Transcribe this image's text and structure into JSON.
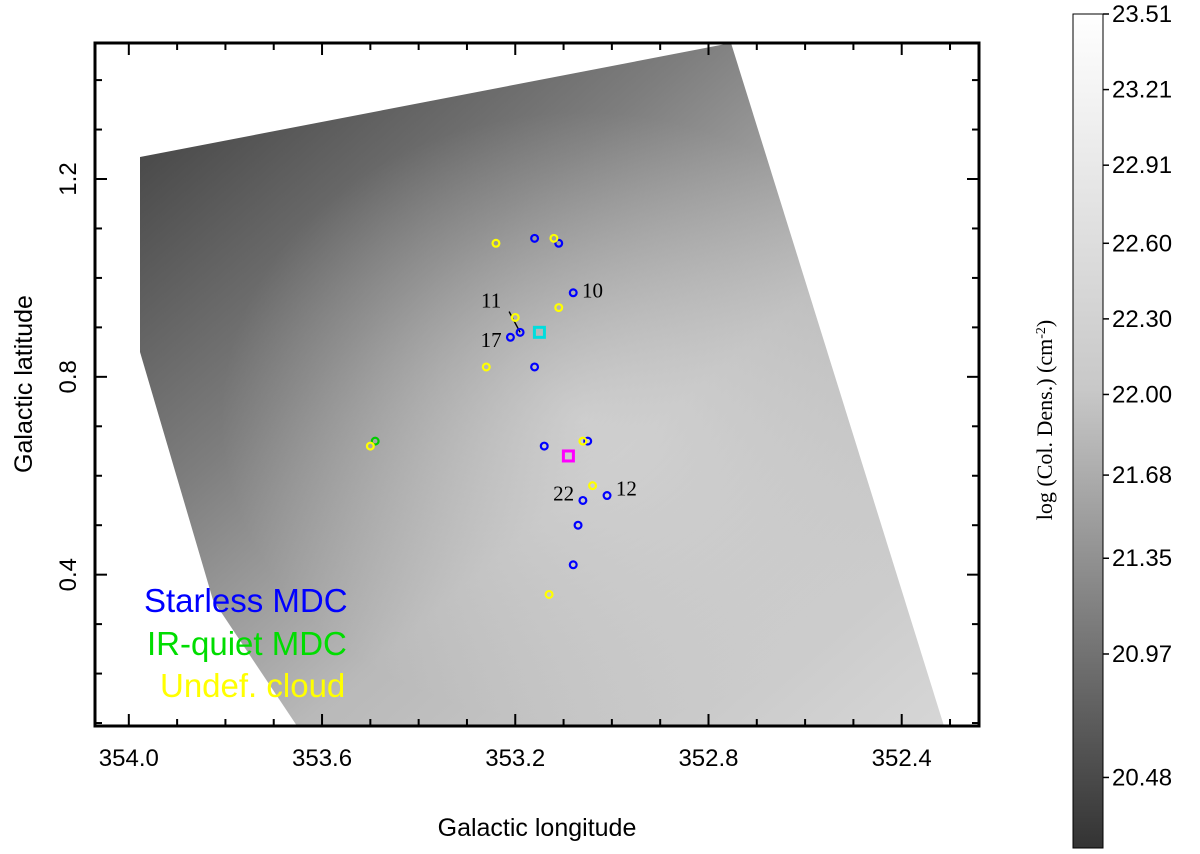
{
  "chart_data": {
    "type": "scatter",
    "title": "",
    "xlabel": "Galactic longitude",
    "ylabel": "Galactic latitude",
    "xlim": [
      354.07,
      352.24
    ],
    "ylim": [
      0.094,
      1.475
    ],
    "x_reversed": true,
    "xticks": [
      "354.0",
      "353.6",
      "353.2",
      "352.8",
      "352.4"
    ],
    "yticks": [
      "0.4",
      "0.8",
      "1.2"
    ],
    "background": "grayscale column-density map (log scale)",
    "grid": false,
    "legend_position": "bottom-left",
    "colorbar": {
      "label": "log (Col. Dens.) (cm⁻²)",
      "label_parts": {
        "main": "log (Col. Dens.) (cm",
        "sup": "-2",
        "end": ")"
      },
      "ticks": [
        "23.51",
        "23.21",
        "22.91",
        "22.60",
        "22.30",
        "22.00",
        "21.68",
        "21.35",
        "20.97",
        "20.48"
      ],
      "range": [
        20.2,
        23.51
      ],
      "colors": {
        "low": "#333333",
        "high": "#ffffff"
      }
    },
    "series": [
      {
        "name": "Starless MDC",
        "color": "#0000ff",
        "marker": "circle",
        "points": [
          {
            "x": 353.16,
            "y": 1.08
          },
          {
            "x": 353.11,
            "y": 1.07
          },
          {
            "x": 353.08,
            "y": 0.97
          },
          {
            "x": 353.19,
            "y": 0.89
          },
          {
            "x": 353.21,
            "y": 0.88
          },
          {
            "x": 353.16,
            "y": 0.82
          },
          {
            "x": 353.14,
            "y": 0.66
          },
          {
            "x": 353.05,
            "y": 0.67
          },
          {
            "x": 353.01,
            "y": 0.56
          },
          {
            "x": 353.06,
            "y": 0.55
          },
          {
            "x": 353.07,
            "y": 0.5
          },
          {
            "x": 353.08,
            "y": 0.42
          }
        ]
      },
      {
        "name": "IR-quiet MDC",
        "color": "#00cc00",
        "marker": "circle",
        "points": [
          {
            "x": 353.49,
            "y": 0.67
          }
        ]
      },
      {
        "name": "Undef. cloud",
        "color": "#ffff00",
        "marker": "circle",
        "points": [
          {
            "x": 353.24,
            "y": 1.07
          },
          {
            "x": 353.12,
            "y": 1.08
          },
          {
            "x": 353.11,
            "y": 0.94
          },
          {
            "x": 353.2,
            "y": 0.92
          },
          {
            "x": 353.26,
            "y": 0.82
          },
          {
            "x": 353.06,
            "y": 0.67
          },
          {
            "x": 353.04,
            "y": 0.58
          },
          {
            "x": 353.13,
            "y": 0.36
          },
          {
            "x": 353.5,
            "y": 0.66
          }
        ]
      },
      {
        "name": "",
        "color": "#00dddd",
        "marker": "square",
        "points": [
          {
            "x": 353.15,
            "y": 0.89
          }
        ]
      },
      {
        "name": "",
        "color": "#ff00ff",
        "marker": "square",
        "points": [
          {
            "x": 353.09,
            "y": 0.64
          }
        ]
      }
    ],
    "annotations": [
      {
        "text": "10",
        "x": 353.04,
        "y": 0.96
      },
      {
        "text": "11",
        "x": 353.25,
        "y": 0.94,
        "arrow_to": {
          "x": 353.19,
          "y": 0.89
        }
      },
      {
        "text": "17",
        "x": 353.25,
        "y": 0.86
      },
      {
        "text": "12",
        "x": 352.97,
        "y": 0.56
      },
      {
        "text": "22",
        "x": 353.1,
        "y": 0.55
      }
    ],
    "legend": [
      {
        "label": "Starless MDC",
        "color": "#0000ff"
      },
      {
        "label": "IR-quiet MDC",
        "color": "#00dd00"
      },
      {
        "label": "Undef. cloud",
        "color": "#ffff00"
      }
    ]
  }
}
